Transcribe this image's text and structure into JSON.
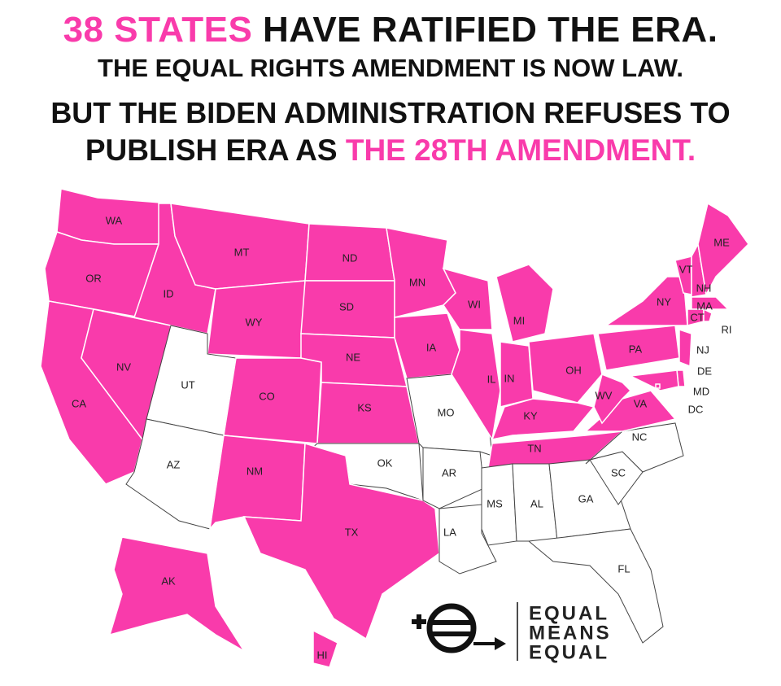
{
  "header": {
    "line1": {
      "highlight": "38 STATES",
      "rest": "HAVE RATIFIED THE ERA."
    },
    "line2": "THE EQUAL RIGHTS AMENDMENT IS NOW LAW.",
    "line3": "BUT THE BIDEN ADMINISTRATION REFUSES TO",
    "line4": {
      "text": "PUBLISH ERA AS",
      "highlight": "THE 28TH AMENDMENT."
    }
  },
  "map": {
    "ratified_color": "#f93bab",
    "unratified_color": "#ffffff",
    "states": [
      {
        "label": "WA",
        "ratified": true
      },
      {
        "label": "OR",
        "ratified": true
      },
      {
        "label": "CA",
        "ratified": true
      },
      {
        "label": "NV",
        "ratified": true
      },
      {
        "label": "ID",
        "ratified": true
      },
      {
        "label": "MT",
        "ratified": true
      },
      {
        "label": "WY",
        "ratified": true
      },
      {
        "label": "UT",
        "ratified": false
      },
      {
        "label": "CO",
        "ratified": true
      },
      {
        "label": "AZ",
        "ratified": false
      },
      {
        "label": "NM",
        "ratified": true
      },
      {
        "label": "ND",
        "ratified": true
      },
      {
        "label": "SD",
        "ratified": true
      },
      {
        "label": "NE",
        "ratified": true
      },
      {
        "label": "KS",
        "ratified": true
      },
      {
        "label": "OK",
        "ratified": false
      },
      {
        "label": "TX",
        "ratified": true
      },
      {
        "label": "MN",
        "ratified": true
      },
      {
        "label": "IA",
        "ratified": true
      },
      {
        "label": "MO",
        "ratified": false
      },
      {
        "label": "AR",
        "ratified": false
      },
      {
        "label": "LA",
        "ratified": false
      },
      {
        "label": "WI",
        "ratified": true
      },
      {
        "label": "IL",
        "ratified": true
      },
      {
        "label": "MI",
        "ratified": true
      },
      {
        "label": "IN",
        "ratified": true
      },
      {
        "label": "OH",
        "ratified": true
      },
      {
        "label": "KY",
        "ratified": true
      },
      {
        "label": "TN",
        "ratified": true
      },
      {
        "label": "MS",
        "ratified": false
      },
      {
        "label": "AL",
        "ratified": false
      },
      {
        "label": "GA",
        "ratified": false
      },
      {
        "label": "FL",
        "ratified": false
      },
      {
        "label": "SC",
        "ratified": false
      },
      {
        "label": "NC",
        "ratified": false
      },
      {
        "label": "VA",
        "ratified": true
      },
      {
        "label": "WV",
        "ratified": true
      },
      {
        "label": "PA",
        "ratified": true
      },
      {
        "label": "NY",
        "ratified": true
      },
      {
        "label": "VT",
        "ratified": true
      },
      {
        "label": "NH",
        "ratified": true
      },
      {
        "label": "ME",
        "ratified": true
      },
      {
        "label": "MA",
        "ratified": true
      },
      {
        "label": "CT",
        "ratified": true
      },
      {
        "label": "RI",
        "ratified": true
      },
      {
        "label": "NJ",
        "ratified": true
      },
      {
        "label": "DE",
        "ratified": true
      },
      {
        "label": "MD",
        "ratified": true
      },
      {
        "label": "DC",
        "ratified": true
      },
      {
        "label": "AK",
        "ratified": true
      },
      {
        "label": "HI",
        "ratified": true
      }
    ]
  },
  "logo": {
    "line1": "EQUAL",
    "line2": "MEANS",
    "line3": "EQUAL"
  }
}
